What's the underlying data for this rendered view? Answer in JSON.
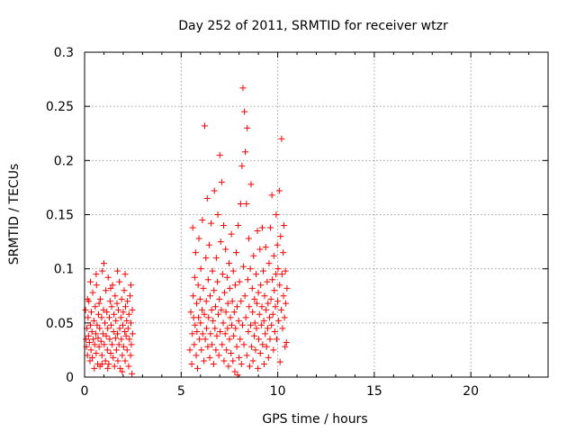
{
  "chart_data": {
    "type": "scatter",
    "title": "Day 252 of 2011, SRMTID for receiver wtzr",
    "xlabel": "GPS time / hours",
    "ylabel": "SRMTID / TECUs",
    "xlim": [
      0,
      24
    ],
    "ylim": [
      0,
      0.3
    ],
    "xticks": [
      0,
      5,
      10,
      15,
      20
    ],
    "xtick_labels": [
      "0",
      "5",
      "10",
      "15",
      "20"
    ],
    "yticks": [
      0,
      0.05,
      0.1,
      0.15,
      0.2,
      0.25,
      0.3
    ],
    "ytick_labels": [
      "0",
      "0.05",
      "0.1",
      "0.15",
      "0.2",
      "0.25",
      "0.3"
    ],
    "grid": true,
    "marker": "+",
    "marker_color": "#ff0000",
    "series": [
      {
        "name": "SRMTID",
        "points": [
          [
            0.05,
            0.062
          ],
          [
            0.08,
            0.035
          ],
          [
            0.1,
            0.028
          ],
          [
            0.12,
            0.045
          ],
          [
            0.15,
            0.02
          ],
          [
            0.18,
            0.055
          ],
          [
            0.2,
            0.038
          ],
          [
            0.22,
            0.07
          ],
          [
            0.25,
            0.032
          ],
          [
            0.28,
            0.015
          ],
          [
            0.3,
            0.048
          ],
          [
            0.33,
            0.025
          ],
          [
            0.35,
            0.06
          ],
          [
            0.38,
            0.042
          ],
          [
            0.4,
            0.018
          ],
          [
            0.42,
            0.078
          ],
          [
            0.45,
            0.035
          ],
          [
            0.48,
            0.052
          ],
          [
            0.5,
            0.008
          ],
          [
            0.52,
            0.03
          ],
          [
            0.55,
            0.065
          ],
          [
            0.58,
            0.04
          ],
          [
            0.6,
            0.022
          ],
          [
            0.62,
            0.085
          ],
          [
            0.65,
            0.048
          ],
          [
            0.68,
            0.012
          ],
          [
            0.7,
            0.036
          ],
          [
            0.72,
            0.058
          ],
          [
            0.75,
            0.028
          ],
          [
            0.78,
            0.045
          ],
          [
            0.8,
            0.01
          ],
          [
            0.82,
            0.072
          ],
          [
            0.85,
            0.033
          ],
          [
            0.88,
            0.055
          ],
          [
            0.9,
            0.02
          ],
          [
            0.92,
            0.098
          ],
          [
            0.95,
            0.04
          ],
          [
            0.98,
            0.062
          ],
          [
            1.0,
            0.105
          ],
          [
            1.02,
            0.03
          ],
          [
            1.05,
            0.05
          ],
          [
            1.08,
            0.015
          ],
          [
            1.1,
            0.08
          ],
          [
            1.12,
            0.038
          ],
          [
            1.15,
            0.06
          ],
          [
            1.18,
            0.025
          ],
          [
            1.2,
            0.045
          ],
          [
            1.22,
            0.092
          ],
          [
            1.25,
            0.012
          ],
          [
            1.28,
            0.055
          ],
          [
            1.3,
            0.035
          ],
          [
            1.32,
            0.07
          ],
          [
            1.35,
            0.022
          ],
          [
            1.38,
            0.048
          ],
          [
            1.4,
            0.065
          ],
          [
            1.42,
            0.03
          ],
          [
            1.45,
            0.085
          ],
          [
            1.48,
            0.018
          ],
          [
            1.5,
            0.042
          ],
          [
            1.52,
            0.058
          ],
          [
            1.55,
            0.01
          ],
          [
            1.58,
            0.075
          ],
          [
            1.6,
            0.036
          ],
          [
            1.62,
            0.052
          ],
          [
            1.65,
            0.025
          ],
          [
            1.68,
            0.068
          ],
          [
            1.7,
            0.04
          ],
          [
            1.72,
            0.015
          ],
          [
            1.75,
            0.062
          ],
          [
            1.78,
            0.03
          ],
          [
            1.8,
            0.088
          ],
          [
            1.82,
            0.045
          ],
          [
            1.85,
            0.008
          ],
          [
            1.88,
            0.055
          ],
          [
            1.9,
            0.035
          ],
          [
            1.92,
            0.072
          ],
          [
            1.95,
            0.02
          ],
          [
            1.98,
            0.048
          ],
          [
            2.0,
            0.06
          ],
          [
            2.02,
            0.028
          ],
          [
            2.05,
            0.08
          ],
          [
            2.08,
            0.042
          ],
          [
            2.1,
            0.015
          ],
          [
            2.12,
            0.065
          ],
          [
            2.15,
            0.038
          ],
          [
            2.18,
            0.052
          ],
          [
            2.2,
            0.025
          ],
          [
            2.22,
            0.07
          ],
          [
            2.25,
            0.045
          ],
          [
            2.28,
            0.01
          ],
          [
            2.3,
            0.058
          ],
          [
            2.32,
            0.035
          ],
          [
            2.35,
            0.075
          ],
          [
            2.38,
            0.02
          ],
          [
            2.4,
            0.05
          ],
          [
            2.42,
            0.03
          ],
          [
            2.45,
            0.003
          ],
          [
            2.47,
            0.062
          ],
          [
            2.49,
            0.04
          ],
          [
            0.3,
            0.088
          ],
          [
            0.6,
            0.095
          ],
          [
            0.9,
            0.012
          ],
          [
            1.2,
            0.008
          ],
          [
            1.7,
            0.098
          ],
          [
            2.1,
            0.095
          ],
          [
            0.15,
            0.072
          ],
          [
            0.75,
            0.068
          ],
          [
            1.35,
            0.082
          ],
          [
            1.95,
            0.005
          ],
          [
            2.4,
            0.085
          ],
          [
            5.45,
            0.025
          ],
          [
            5.5,
            0.06
          ],
          [
            5.55,
            0.012
          ],
          [
            5.58,
            0.04
          ],
          [
            5.6,
            0.138
          ],
          [
            5.62,
            0.075
          ],
          [
            5.65,
            0.055
          ],
          [
            5.68,
            0.03
          ],
          [
            5.7,
            0.092
          ],
          [
            5.72,
            0.048
          ],
          [
            5.75,
            0.115
          ],
          [
            5.78,
            0.02
          ],
          [
            5.8,
            0.068
          ],
          [
            5.82,
            0.042
          ],
          [
            5.85,
            0.008
          ],
          [
            5.88,
            0.085
          ],
          [
            5.9,
            0.055
          ],
          [
            5.92,
            0.128
          ],
          [
            5.95,
            0.035
          ],
          [
            5.98,
            0.072
          ],
          [
            6.0,
            0.05
          ],
          [
            6.02,
            0.1
          ],
          [
            6.05,
            0.025
          ],
          [
            6.08,
            0.062
          ],
          [
            6.1,
            0.145
          ],
          [
            6.12,
            0.04
          ],
          [
            6.15,
            0.082
          ],
          [
            6.18,
            0.015
          ],
          [
            6.2,
            0.058
          ],
          [
            6.22,
            0.232
          ],
          [
            6.25,
            0.035
          ],
          [
            6.28,
            0.11
          ],
          [
            6.3,
            0.07
          ],
          [
            6.32,
            0.045
          ],
          [
            6.35,
            0.165
          ],
          [
            6.38,
            0.028
          ],
          [
            6.4,
            0.09
          ],
          [
            6.42,
            0.055
          ],
          [
            6.45,
            0.122
          ],
          [
            6.48,
            0.018
          ],
          [
            6.5,
            0.075
          ],
          [
            6.52,
            0.04
          ],
          [
            6.55,
            0.142
          ],
          [
            6.58,
            0.062
          ],
          [
            6.6,
            0.03
          ],
          [
            6.62,
            0.098
          ],
          [
            6.65,
            0.052
          ],
          [
            6.68,
            0.012
          ],
          [
            6.7,
            0.08
          ],
          [
            6.72,
            0.172
          ],
          [
            6.75,
            0.045
          ],
          [
            6.78,
            0.065
          ],
          [
            6.8,
            0.025
          ],
          [
            6.82,
            0.11
          ],
          [
            6.85,
            0.038
          ],
          [
            6.88,
            0.088
          ],
          [
            6.9,
            0.15
          ],
          [
            6.92,
            0.058
          ],
          [
            6.95,
            0.02
          ],
          [
            6.98,
            0.072
          ],
          [
            7.0,
            0.205
          ],
          [
            7.02,
            0.042
          ],
          [
            7.05,
            0.125
          ],
          [
            7.08,
            0.062
          ],
          [
            7.1,
            0.18
          ],
          [
            7.12,
            0.03
          ],
          [
            7.15,
            0.095
          ],
          [
            7.18,
            0.05
          ],
          [
            7.2,
            0.14
          ],
          [
            7.22,
            0.015
          ],
          [
            7.25,
            0.078
          ],
          [
            7.28,
            0.04
          ],
          [
            7.3,
            0.118
          ],
          [
            7.32,
            0.06
          ],
          [
            7.35,
            0.025
          ],
          [
            7.38,
            0.092
          ],
          [
            7.4,
            0.045
          ],
          [
            7.42,
            0.068
          ],
          [
            7.45,
            0.01
          ],
          [
            7.48,
            0.105
          ],
          [
            7.5,
            0.035
          ],
          [
            7.52,
            0.082
          ],
          [
            7.55,
            0.055
          ],
          [
            7.58,
            0.022
          ],
          [
            7.6,
            0.132
          ],
          [
            7.62,
            0.048
          ],
          [
            7.65,
            0.07
          ],
          [
            7.68,
            0.015
          ],
          [
            7.7,
            0.098
          ],
          [
            7.72,
            0.038
          ],
          [
            7.75,
            0.06
          ],
          [
            7.78,
            0.005
          ],
          [
            7.8,
            0.085
          ],
          [
            7.82,
            0.045
          ],
          [
            7.85,
            0.115
          ],
          [
            7.88,
            0.028
          ],
          [
            7.9,
            0.065
          ],
          [
            7.92,
            0.002
          ],
          [
            7.95,
            0.14
          ],
          [
            7.98,
            0.052
          ],
          [
            8.0,
            0.018
          ],
          [
            8.02,
            0.088
          ],
          [
            8.05,
            0.035
          ],
          [
            8.08,
            0.16
          ],
          [
            8.1,
            0.07
          ],
          [
            8.12,
            0.012
          ],
          [
            8.15,
            0.195
          ],
          [
            8.18,
            0.048
          ],
          [
            8.2,
            0.267
          ],
          [
            8.22,
            0.102
          ],
          [
            8.25,
            0.03
          ],
          [
            8.28,
            0.245
          ],
          [
            8.3,
            0.075
          ],
          [
            8.32,
            0.208
          ],
          [
            8.35,
            0.055
          ],
          [
            8.38,
            0.16
          ],
          [
            8.4,
            0.02
          ],
          [
            8.42,
            0.23
          ],
          [
            8.45,
            0.09
          ],
          [
            8.48,
            0.042
          ],
          [
            8.5,
            0.128
          ],
          [
            8.52,
            0.065
          ],
          [
            8.55,
            0.01
          ],
          [
            8.58,
            0.1
          ],
          [
            8.6,
            0.048
          ],
          [
            8.62,
            0.178
          ],
          [
            8.65,
            0.028
          ],
          [
            8.68,
            0.082
          ],
          [
            8.7,
            0.06
          ],
          [
            8.72,
            0.015
          ],
          [
            8.75,
            0.112
          ],
          [
            8.78,
            0.038
          ],
          [
            8.8,
            0.072
          ],
          [
            8.82,
            0.05
          ],
          [
            8.85,
            0.025
          ],
          [
            8.88,
            0.095
          ],
          [
            8.9,
            0.045
          ],
          [
            8.92,
            0.068
          ],
          [
            8.95,
            0.135
          ],
          [
            8.98,
            0.008
          ],
          [
            9.0,
            0.078
          ],
          [
            9.02,
            0.035
          ],
          [
            9.05,
            0.058
          ],
          [
            9.08,
            0.118
          ],
          [
            9.1,
            0.022
          ],
          [
            9.12,
            0.085
          ],
          [
            9.15,
            0.048
          ],
          [
            9.18,
            0.065
          ],
          [
            9.2,
            0.138
          ],
          [
            9.22,
            0.03
          ],
          [
            9.25,
            0.098
          ],
          [
            9.28,
            0.052
          ],
          [
            9.3,
            0.012
          ],
          [
            9.32,
            0.075
          ],
          [
            9.35,
            0.04
          ],
          [
            9.38,
            0.12
          ],
          [
            9.4,
            0.062
          ],
          [
            9.42,
            0.028
          ],
          [
            9.45,
            0.088
          ],
          [
            9.48,
            0.045
          ],
          [
            9.5,
            0.068
          ],
          [
            9.52,
            0.018
          ],
          [
            9.55,
            0.105
          ],
          [
            9.58,
            0.055
          ],
          [
            9.6,
            0.035
          ],
          [
            9.62,
            0.138
          ],
          [
            9.65,
            0.072
          ],
          [
            9.68,
            0.048
          ],
          [
            9.7,
            0.168
          ],
          [
            9.72,
            0.09
          ],
          [
            9.75,
            0.058
          ],
          [
            9.78,
            0.025
          ],
          [
            9.8,
            0.112
          ],
          [
            9.82,
            0.08
          ],
          [
            9.85,
            0.042
          ],
          [
            9.88,
            0.065
          ],
          [
            9.9,
            0.095
          ],
          [
            9.92,
            0.15
          ],
          [
            9.95,
            0.035
          ],
          [
            9.98,
            0.122
          ],
          [
            10.0,
            0.07
          ],
          [
            10.02,
            0.1
          ],
          [
            10.05,
            0.052
          ],
          [
            10.08,
            0.172
          ],
          [
            10.1,
            0.085
          ],
          [
            10.12,
            0.014
          ],
          [
            10.15,
            0.13
          ],
          [
            10.18,
            0.062
          ],
          [
            10.2,
            0.22
          ],
          [
            10.22,
            0.095
          ],
          [
            10.25,
            0.045
          ],
          [
            10.28,
            0.115
          ],
          [
            10.3,
            0.075
          ],
          [
            10.32,
            0.14
          ],
          [
            10.35,
            0.055
          ],
          [
            10.38,
            0.028
          ],
          [
            10.4,
            0.098
          ],
          [
            10.42,
            0.068
          ],
          [
            10.45,
            0.032
          ],
          [
            10.48,
            0.082
          ]
        ]
      }
    ]
  }
}
